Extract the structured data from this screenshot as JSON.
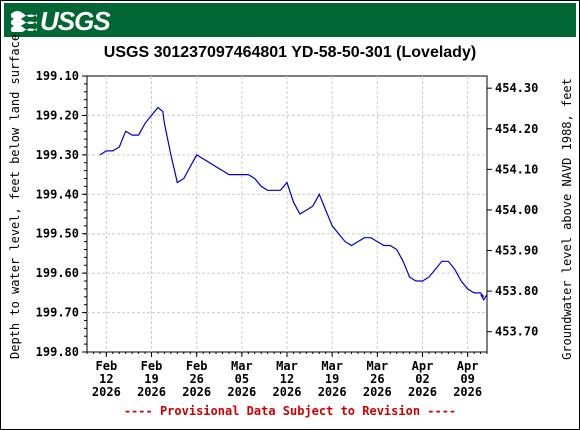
{
  "header": {
    "logo_text": "USGS",
    "brand_color": "#006633"
  },
  "chart_data": {
    "type": "line",
    "title": "USGS 301237097464801 YD-58-50-301 (Lovelady)",
    "ylabel_left": "Depth to water level, feet below land surface",
    "ylabel_right": "Groundwater level above NAVD 1988, feet",
    "ylim_left": [
      199.8,
      199.1
    ],
    "ylim_right": [
      453.65,
      454.33
    ],
    "left_ticks": [
      "199.10",
      "199.20",
      "199.30",
      "199.40",
      "199.50",
      "199.60",
      "199.70",
      "199.80"
    ],
    "right_ticks": [
      "454.30",
      "454.20",
      "454.10",
      "454.00",
      "453.90",
      "453.80",
      "453.70"
    ],
    "x_ticks": [
      {
        "month": "Feb",
        "day": "12",
        "year": "2026"
      },
      {
        "month": "Feb",
        "day": "19",
        "year": "2026"
      },
      {
        "month": "Feb",
        "day": "26",
        "year": "2026"
      },
      {
        "month": "Mar",
        "day": "05",
        "year": "2026"
      },
      {
        "month": "Mar",
        "day": "12",
        "year": "2026"
      },
      {
        "month": "Mar",
        "day": "19",
        "year": "2026"
      },
      {
        "month": "Mar",
        "day": "26",
        "year": "2026"
      },
      {
        "month": "Apr",
        "day": "02",
        "year": "2026"
      },
      {
        "month": "Apr",
        "day": "09",
        "year": "2026"
      }
    ],
    "grid": true,
    "series_color": "#0000cc",
    "series": [
      {
        "points": [
          [
            "2026-02-11",
            199.3
          ],
          [
            "2026-02-12",
            199.29
          ],
          [
            "2026-02-13",
            199.29
          ],
          [
            "2026-02-14",
            199.28
          ],
          [
            "2026-02-15",
            199.24
          ],
          [
            "2026-02-16",
            199.25
          ],
          [
            "2026-02-17",
            199.25
          ],
          [
            "2026-02-18",
            199.22
          ],
          [
            "2026-02-19",
            199.2
          ],
          [
            "2026-02-20",
            199.18
          ],
          [
            "2026-02-20T18",
            199.19
          ],
          [
            "2026-02-21",
            199.22
          ],
          [
            "2026-02-22",
            199.3
          ],
          [
            "2026-02-23",
            199.37
          ],
          [
            "2026-02-24",
            199.36
          ],
          [
            "2026-02-25",
            199.33
          ],
          [
            "2026-02-26",
            199.3
          ],
          [
            "2026-02-27",
            199.31
          ],
          [
            "2026-02-28",
            199.32
          ],
          [
            "2026-03-01",
            199.33
          ],
          [
            "2026-03-02",
            199.34
          ],
          [
            "2026-03-03",
            199.35
          ],
          [
            "2026-03-04",
            199.35
          ],
          [
            "2026-03-05",
            199.35
          ],
          [
            "2026-03-06",
            199.35
          ],
          [
            "2026-03-07",
            199.36
          ],
          [
            "2026-03-08",
            199.38
          ],
          [
            "2026-03-09",
            199.39
          ],
          [
            "2026-03-10",
            199.39
          ],
          [
            "2026-03-11",
            199.39
          ],
          [
            "2026-03-12",
            199.37
          ],
          [
            "2026-03-13",
            199.42
          ],
          [
            "2026-03-14",
            199.45
          ],
          [
            "2026-03-15",
            199.44
          ],
          [
            "2026-03-16",
            199.43
          ],
          [
            "2026-03-17",
            199.4
          ],
          [
            "2026-03-18",
            199.44
          ],
          [
            "2026-03-19",
            199.48
          ],
          [
            "2026-03-20",
            199.5
          ],
          [
            "2026-03-21",
            199.52
          ],
          [
            "2026-03-22",
            199.53
          ],
          [
            "2026-03-23",
            199.52
          ],
          [
            "2026-03-24",
            199.51
          ],
          [
            "2026-03-25",
            199.51
          ],
          [
            "2026-03-26",
            199.52
          ],
          [
            "2026-03-27",
            199.53
          ],
          [
            "2026-03-28",
            199.53
          ],
          [
            "2026-03-29",
            199.54
          ],
          [
            "2026-03-30",
            199.57
          ],
          [
            "2026-03-31",
            199.61
          ],
          [
            "2026-04-01",
            199.62
          ],
          [
            "2026-04-02",
            199.62
          ],
          [
            "2026-04-03",
            199.61
          ],
          [
            "2026-04-04",
            199.59
          ],
          [
            "2026-04-05",
            199.57
          ],
          [
            "2026-04-06",
            199.57
          ],
          [
            "2026-04-07",
            199.59
          ],
          [
            "2026-04-08",
            199.62
          ],
          [
            "2026-04-09",
            199.64
          ],
          [
            "2026-04-10",
            199.65
          ],
          [
            "2026-04-11",
            199.65
          ],
          [
            "2026-04-11T12",
            199.66
          ]
        ]
      }
    ]
  },
  "footer": {
    "provisional_note": "---- Provisional Data Subject to Revision ----",
    "note_color": "#cc0000"
  }
}
